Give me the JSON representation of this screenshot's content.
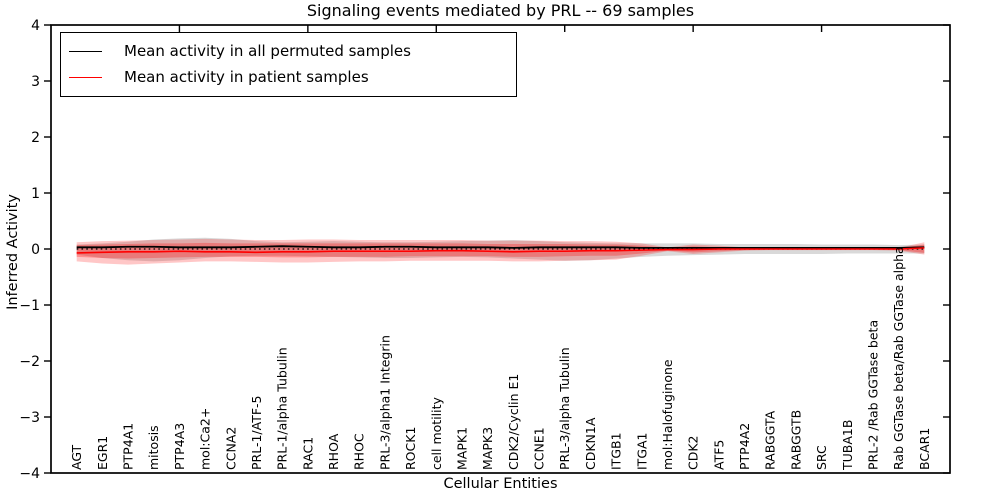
{
  "legend": {
    "items": [
      {
        "label": "Mean activity in all permuted samples",
        "color": "#000000"
      },
      {
        "label": "Mean activity in patient samples",
        "color": "#ff0000"
      }
    ]
  },
  "chart_data": {
    "type": "line",
    "title": "Signaling events mediated by PRL -- 69 samples",
    "xlabel": "Cellular Entities",
    "ylabel": "Inferred Activity",
    "ylim": [
      -4,
      4
    ],
    "yticks": [
      -4,
      -3,
      -2,
      -1,
      0,
      1,
      2,
      3,
      4
    ],
    "x_axis_numeric_range": [
      0,
      35
    ],
    "top_axis_ticks": [
      5,
      10,
      15,
      20,
      25,
      30
    ],
    "grid": false,
    "legend_position": "upper left",
    "categories": [
      "AGT",
      "EGR1",
      "PTP4A1",
      "mitosis",
      "PTP4A3",
      "mol:Ca2+",
      "CCNA2",
      "PRL-1/ATF-5",
      "PRL-1/alpha Tubulin",
      "RAC1",
      "RHOA",
      "RHOC",
      "PRL-3/alpha1 Integrin",
      "ROCK1",
      "cell motility",
      "MAPK1",
      "MAPK3",
      "CDK2/Cyclin E1",
      "CCNE1",
      "PRL-3/alpha Tubulin",
      "CDKN1A",
      "ITGB1",
      "ITGA1",
      "mol:Halofuginone",
      "CDK2",
      "ATF5",
      "PTP4A2",
      "RABGGTA",
      "RABGGTB",
      "SRC",
      "TUBA1B",
      "PRL-2 /Rab GGTase beta",
      "Rab GGTase beta/Rab GGTase alpha",
      "BCAR1"
    ],
    "series": [
      {
        "name": "Mean activity in all permuted samples",
        "color": "#000000",
        "width": 1.8,
        "values": [
          0.03,
          0.03,
          0.04,
          0.04,
          0.03,
          0.03,
          0.03,
          0.04,
          0.05,
          0.04,
          0.03,
          0.03,
          0.04,
          0.04,
          0.03,
          0.03,
          0.03,
          0.02,
          0.03,
          0.03,
          0.03,
          0.03,
          0.02,
          0.02,
          0.02,
          0.02,
          0.02,
          0.02,
          0.02,
          0.02,
          0.02,
          0.02,
          0.02,
          0.03
        ]
      },
      {
        "name": "Mean activity in patient samples",
        "color": "#ff0000",
        "width": 1.6,
        "values": [
          -0.07,
          -0.06,
          -0.05,
          -0.05,
          -0.04,
          -0.05,
          -0.05,
          -0.06,
          -0.05,
          -0.05,
          -0.04,
          -0.04,
          -0.04,
          -0.04,
          -0.03,
          -0.03,
          -0.04,
          -0.05,
          -0.04,
          -0.04,
          -0.03,
          -0.03,
          -0.02,
          -0.01,
          -0.01,
          0,
          0,
          0,
          0,
          0,
          0,
          0,
          0,
          0.02
        ]
      }
    ],
    "bands": [
      {
        "name": "permuted-samples-std-band",
        "color": "#aaaaaa",
        "opacity": 0.45,
        "upper": [
          0.08,
          0.1,
          0.13,
          0.17,
          0.19,
          0.2,
          0.18,
          0.14,
          0.12,
          0.13,
          0.14,
          0.13,
          0.12,
          0.12,
          0.13,
          0.14,
          0.15,
          0.16,
          0.14,
          0.12,
          0.11,
          0.1,
          0.1,
          0.1,
          0.1,
          0.09,
          0.09,
          0.09,
          0.09,
          0.08,
          0.08,
          0.08,
          0.07,
          0.08
        ],
        "lower": [
          -0.1,
          -0.16,
          -0.2,
          -0.22,
          -0.2,
          -0.16,
          -0.13,
          -0.12,
          -0.12,
          -0.13,
          -0.14,
          -0.15,
          -0.16,
          -0.16,
          -0.15,
          -0.14,
          -0.15,
          -0.17,
          -0.19,
          -0.21,
          -0.2,
          -0.17,
          -0.14,
          -0.12,
          -0.11,
          -0.1,
          -0.09,
          -0.09,
          -0.09,
          -0.09,
          -0.08,
          -0.08,
          -0.08,
          -0.08
        ]
      },
      {
        "name": "patient-samples-std-outer-band",
        "color": "#ff0000",
        "opacity": 0.22,
        "upper": [
          0.12,
          0.14,
          0.15,
          0.16,
          0.17,
          0.18,
          0.17,
          0.16,
          0.16,
          0.17,
          0.17,
          0.16,
          0.16,
          0.16,
          0.16,
          0.16,
          0.15,
          0.15,
          0.15,
          0.14,
          0.14,
          0.13,
          0.1,
          0.03,
          0.08,
          0.06,
          0.03,
          0.02,
          0.02,
          0.02,
          0.02,
          0.02,
          0.02,
          0.12
        ],
        "lower": [
          -0.22,
          -0.26,
          -0.28,
          -0.26,
          -0.24,
          -0.22,
          -0.22,
          -0.23,
          -0.24,
          -0.24,
          -0.23,
          -0.22,
          -0.22,
          -0.21,
          -0.21,
          -0.21,
          -0.21,
          -0.22,
          -0.22,
          -0.21,
          -0.2,
          -0.19,
          -0.12,
          -0.04,
          -0.09,
          -0.06,
          -0.03,
          -0.02,
          -0.02,
          -0.02,
          -0.02,
          -0.02,
          -0.03,
          -0.1
        ]
      },
      {
        "name": "patient-samples-std-inner-band",
        "color": "#ff0000",
        "opacity": 0.28,
        "upper": [
          0.07,
          0.08,
          0.09,
          0.1,
          0.1,
          0.11,
          0.1,
          0.1,
          0.1,
          0.1,
          0.1,
          0.1,
          0.1,
          0.1,
          0.1,
          0.1,
          0.09,
          0.09,
          0.09,
          0.09,
          0.08,
          0.08,
          0.06,
          0.02,
          0.05,
          0.03,
          0.02,
          0.01,
          0.01,
          0.01,
          0.01,
          0.01,
          0.01,
          0.08
        ],
        "lower": [
          -0.14,
          -0.16,
          -0.17,
          -0.16,
          -0.15,
          -0.14,
          -0.14,
          -0.14,
          -0.15,
          -0.15,
          -0.14,
          -0.14,
          -0.14,
          -0.13,
          -0.13,
          -0.13,
          -0.13,
          -0.14,
          -0.14,
          -0.13,
          -0.12,
          -0.12,
          -0.08,
          -0.03,
          -0.06,
          -0.04,
          -0.02,
          -0.01,
          -0.01,
          -0.01,
          -0.01,
          -0.01,
          -0.02,
          -0.07
        ]
      }
    ],
    "zero_line": {
      "style": "dotted",
      "color": "#000000",
      "y": 0
    }
  }
}
